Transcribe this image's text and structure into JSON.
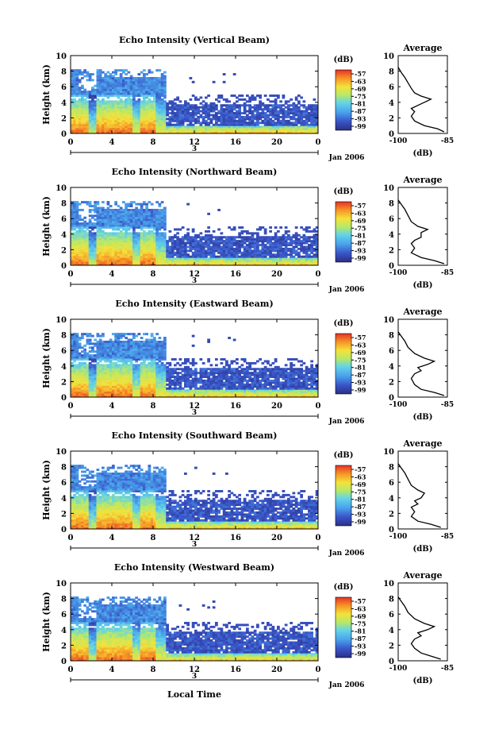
{
  "figure": {
    "x_axis_label": "Local Time",
    "date_label": "Jan 2006",
    "day_marker": "3"
  },
  "chart_data": [
    {
      "type": "heatmap",
      "title": "Echo Intensity (Vertical Beam)",
      "ylabel": "Height (km)",
      "xlabel": "Local Time",
      "x_ticks": [
        "0",
        "4",
        "8",
        "12",
        "16",
        "20",
        "0"
      ],
      "y_ticks": [
        "0",
        "2",
        "4",
        "6",
        "8",
        "10"
      ],
      "xlim": [
        0,
        24
      ],
      "ylim": [
        0,
        10
      ],
      "colorbar": {
        "unit": "(dB)",
        "ticks": [
          "-57",
          "-63",
          "-69",
          "-75",
          "-81",
          "-87",
          "-93",
          "-99"
        ]
      },
      "profile": {
        "title": "Average",
        "xlabel": "(dB)",
        "x_ticks": [
          "-100",
          "-85"
        ],
        "xlim": [
          -100,
          -85
        ],
        "y_ticks": [
          "0",
          "2",
          "4",
          "6",
          "8",
          "10"
        ],
        "ylim": [
          0,
          10
        ],
        "values": [
          [
            -86,
            0.2
          ],
          [
            -88,
            0.6
          ],
          [
            -92,
            1
          ],
          [
            -95,
            1.6
          ],
          [
            -96,
            2.2
          ],
          [
            -95,
            2.8
          ],
          [
            -96,
            3.2
          ],
          [
            -94,
            3.6
          ],
          [
            -92,
            4
          ],
          [
            -90,
            4.4
          ],
          [
            -93,
            4.8
          ],
          [
            -95,
            5.2
          ],
          [
            -96,
            5.8
          ],
          [
            -97,
            6.5
          ],
          [
            -98,
            7.2
          ],
          [
            -99,
            7.8
          ],
          [
            -100,
            8.5
          ]
        ]
      }
    },
    {
      "type": "heatmap",
      "title": "Echo Intensity (Northward Beam)",
      "ylabel": "Height (km)",
      "xlabel": "Local Time",
      "x_ticks": [
        "0",
        "4",
        "8",
        "12",
        "16",
        "20",
        "0"
      ],
      "y_ticks": [
        "0",
        "2",
        "4",
        "6",
        "8",
        "10"
      ],
      "xlim": [
        0,
        24
      ],
      "ylim": [
        0,
        10
      ],
      "colorbar": {
        "unit": "(dB)",
        "ticks": [
          "-57",
          "-63",
          "-69",
          "-75",
          "-81",
          "-87",
          "-93",
          "-99"
        ]
      },
      "profile": {
        "title": "Average",
        "xlabel": "(dB)",
        "x_ticks": [
          "-100",
          "-85"
        ],
        "xlim": [
          -100,
          -85
        ],
        "y_ticks": [
          "0",
          "2",
          "4",
          "6",
          "8",
          "10"
        ],
        "ylim": [
          0,
          10
        ],
        "values": [
          [
            -86,
            0.2
          ],
          [
            -89,
            0.6
          ],
          [
            -93,
            1
          ],
          [
            -96,
            1.6
          ],
          [
            -95,
            2.2
          ],
          [
            -96,
            2.8
          ],
          [
            -95,
            3.2
          ],
          [
            -93,
            3.6
          ],
          [
            -93,
            4.2
          ],
          [
            -91,
            4.6
          ],
          [
            -94,
            5
          ],
          [
            -96,
            5.6
          ],
          [
            -97,
            6.4
          ],
          [
            -98,
            7.2
          ],
          [
            -99,
            7.8
          ],
          [
            -100,
            8.4
          ]
        ]
      }
    },
    {
      "type": "heatmap",
      "title": "Echo Intensity (Eastward Beam)",
      "ylabel": "Height (km)",
      "xlabel": "Local Time",
      "x_ticks": [
        "0",
        "4",
        "8",
        "12",
        "16",
        "20",
        "0"
      ],
      "y_ticks": [
        "0",
        "2",
        "4",
        "6",
        "8",
        "10"
      ],
      "xlim": [
        0,
        24
      ],
      "ylim": [
        0,
        10
      ],
      "colorbar": {
        "unit": "(dB)",
        "ticks": [
          "-57",
          "-63",
          "-69",
          "-75",
          "-81",
          "-87",
          "-93",
          "-99"
        ]
      },
      "profile": {
        "title": "Average",
        "xlabel": "(dB)",
        "x_ticks": [
          "-100",
          "-85"
        ],
        "xlim": [
          -100,
          -85
        ],
        "y_ticks": [
          "0",
          "2",
          "4",
          "6",
          "8",
          "10"
        ],
        "ylim": [
          0,
          10
        ],
        "values": [
          [
            -86,
            0.2
          ],
          [
            -89,
            0.6
          ],
          [
            -93,
            1
          ],
          [
            -95,
            1.6
          ],
          [
            -96,
            2.4
          ],
          [
            -95,
            3
          ],
          [
            -93,
            3.4
          ],
          [
            -94,
            3.8
          ],
          [
            -91,
            4.2
          ],
          [
            -89,
            4.6
          ],
          [
            -92,
            5
          ],
          [
            -95,
            5.6
          ],
          [
            -97,
            6.4
          ],
          [
            -98,
            7.2
          ],
          [
            -99,
            7.8
          ],
          [
            -100,
            8.4
          ]
        ]
      }
    },
    {
      "type": "heatmap",
      "title": "Echo Intensity (Southward Beam)",
      "ylabel": "Height (km)",
      "xlabel": "Local Time",
      "x_ticks": [
        "0",
        "4",
        "8",
        "12",
        "16",
        "20",
        "0"
      ],
      "y_ticks": [
        "0",
        "2",
        "4",
        "6",
        "8",
        "10"
      ],
      "xlim": [
        0,
        24
      ],
      "ylim": [
        0,
        10
      ],
      "colorbar": {
        "unit": "(dB)",
        "ticks": [
          "-57",
          "-63",
          "-69",
          "-75",
          "-81",
          "-87",
          "-93",
          "-99"
        ]
      },
      "profile": {
        "title": "Average",
        "xlabel": "(dB)",
        "x_ticks": [
          "-100",
          "-85"
        ],
        "xlim": [
          -100,
          -85
        ],
        "y_ticks": [
          "0",
          "2",
          "4",
          "6",
          "8",
          "10"
        ],
        "ylim": [
          0,
          10
        ],
        "values": [
          [
            -87,
            0.2
          ],
          [
            -90,
            0.6
          ],
          [
            -94,
            1
          ],
          [
            -96,
            1.6
          ],
          [
            -95,
            2.2
          ],
          [
            -96,
            2.8
          ],
          [
            -94,
            3.2
          ],
          [
            -95,
            3.6
          ],
          [
            -93,
            4
          ],
          [
            -92,
            4.6
          ],
          [
            -94,
            5
          ],
          [
            -96,
            5.6
          ],
          [
            -97,
            6.4
          ],
          [
            -98,
            7.2
          ],
          [
            -99,
            7.8
          ],
          [
            -100,
            8.4
          ]
        ]
      }
    },
    {
      "type": "heatmap",
      "title": "Echo Intensity (Westward Beam)",
      "ylabel": "Height (km)",
      "xlabel": "Local Time",
      "x_ticks": [
        "0",
        "4",
        "8",
        "12",
        "16",
        "20",
        "0"
      ],
      "y_ticks": [
        "0",
        "2",
        "4",
        "6",
        "8",
        "10"
      ],
      "xlim": [
        0,
        24
      ],
      "ylim": [
        0,
        10
      ],
      "colorbar": {
        "unit": "(dB)",
        "ticks": [
          "-57",
          "-63",
          "-69",
          "-75",
          "-81",
          "-87",
          "-93",
          "-99"
        ]
      },
      "profile": {
        "title": "Average",
        "xlabel": "(dB)",
        "x_ticks": [
          "-100",
          "-85"
        ],
        "xlim": [
          -100,
          -85
        ],
        "y_ticks": [
          "0",
          "2",
          "4",
          "6",
          "8",
          "10"
        ],
        "ylim": [
          0,
          10
        ],
        "values": [
          [
            -87,
            0.2
          ],
          [
            -90,
            0.6
          ],
          [
            -93,
            1
          ],
          [
            -95,
            1.6
          ],
          [
            -96,
            2.2
          ],
          [
            -95,
            2.8
          ],
          [
            -93,
            3.2
          ],
          [
            -94,
            3.6
          ],
          [
            -91,
            4
          ],
          [
            -89,
            4.4
          ],
          [
            -92,
            4.8
          ],
          [
            -95,
            5.4
          ],
          [
            -97,
            6.2
          ],
          [
            -98,
            7
          ],
          [
            -99,
            7.6
          ],
          [
            -100,
            8.2
          ]
        ]
      }
    }
  ]
}
